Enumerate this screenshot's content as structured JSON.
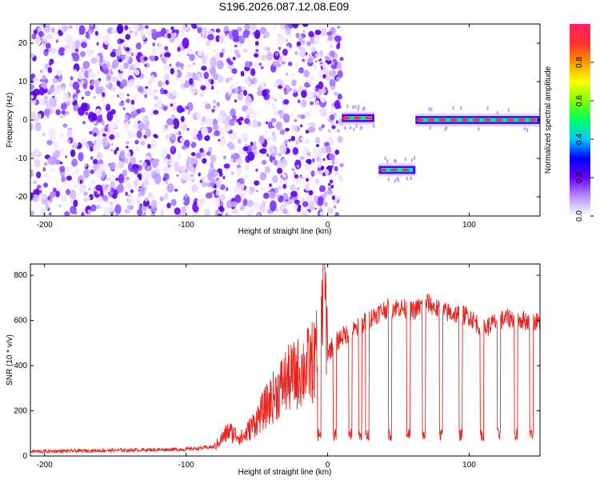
{
  "chart_data": [
    {
      "type": "heatmap",
      "title": "S196.2026.087.12.08.E09",
      "xlabel": "Height of straight line (km)",
      "ylabel": "Frequency (Hz)",
      "xlim": [
        -210,
        150
      ],
      "ylim": [
        -25,
        25
      ],
      "xticks": [
        -200,
        -100,
        0,
        100
      ],
      "yticks": [
        -20,
        -10,
        0,
        10,
        20
      ],
      "colorbar": {
        "label": "Normalized spectral amplitude",
        "range": [
          0,
          1
        ],
        "ticks": [
          0.0,
          0.2,
          0.4,
          0.6,
          0.8
        ]
      },
      "noise_region": [
        -210,
        10
      ],
      "tone_segments": [
        {
          "x": [
            10,
            33
          ],
          "freq": 0.5
        },
        {
          "x": [
            36,
            62
          ],
          "freq": -13
        },
        {
          "x": [
            62,
            150
          ],
          "freq": 0
        }
      ]
    },
    {
      "type": "line",
      "xlabel": "Height of straight line (km)",
      "ylabel": "SNR (10 * v/v)",
      "xlim": [
        -210,
        150
      ],
      "ylim": [
        0,
        850
      ],
      "xticks": [
        -200,
        -100,
        0,
        100
      ],
      "yticks": [
        0,
        200,
        400,
        600,
        800
      ],
      "color": "#e8221c",
      "series": [
        {
          "x": [
            -210,
            -150,
            -100,
            -80,
            -70,
            -60,
            -50,
            -40,
            -30,
            -20,
            -10,
            -5,
            -3,
            0,
            10,
            20,
            30,
            40,
            50,
            60,
            70,
            80,
            90,
            100,
            110,
            120,
            130,
            140,
            150
          ],
          "values": [
            20,
            25,
            30,
            40,
            110,
            80,
            160,
            250,
            330,
            370,
            420,
            480,
            850,
            460,
            530,
            560,
            610,
            650,
            660,
            640,
            680,
            640,
            630,
            620,
            560,
            600,
            610,
            600,
            590
          ]
        }
      ],
      "dips": [
        -6,
        5,
        16,
        23,
        28,
        44,
        57,
        68,
        80,
        94,
        109,
        121,
        133,
        144
      ],
      "dip_level": 110
    }
  ]
}
